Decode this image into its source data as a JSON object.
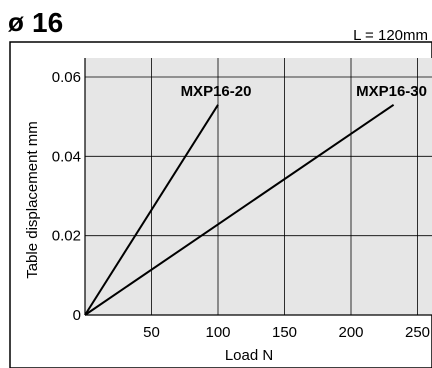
{
  "chart_data": {
    "type": "line",
    "title_symbol": "ø",
    "title_value": "16",
    "subtitle": "L = 120mm",
    "xlabel": "Load N",
    "ylabel": "Table displacement mm",
    "xlim": [
      0,
      262
    ],
    "ylim": [
      0,
      0.066
    ],
    "x_ticks": [
      50,
      100,
      150,
      200,
      250
    ],
    "x_tick_labels": [
      "50",
      "100",
      "150",
      "200",
      "250"
    ],
    "y_ticks": [
      0,
      0.02,
      0.04,
      0.06
    ],
    "y_tick_labels": [
      "0",
      "0.02",
      "0.04",
      "0.06"
    ],
    "grid": true,
    "plot_background": "#e6e6e6",
    "series": [
      {
        "name": "MXP16-20",
        "color": "#000000",
        "points": [
          [
            0,
            0
          ],
          [
            100,
            0.053
          ]
        ]
      },
      {
        "name": "MXP16-30",
        "color": "#000000",
        "points": [
          [
            0,
            0
          ],
          [
            232,
            0.053
          ]
        ]
      }
    ]
  }
}
